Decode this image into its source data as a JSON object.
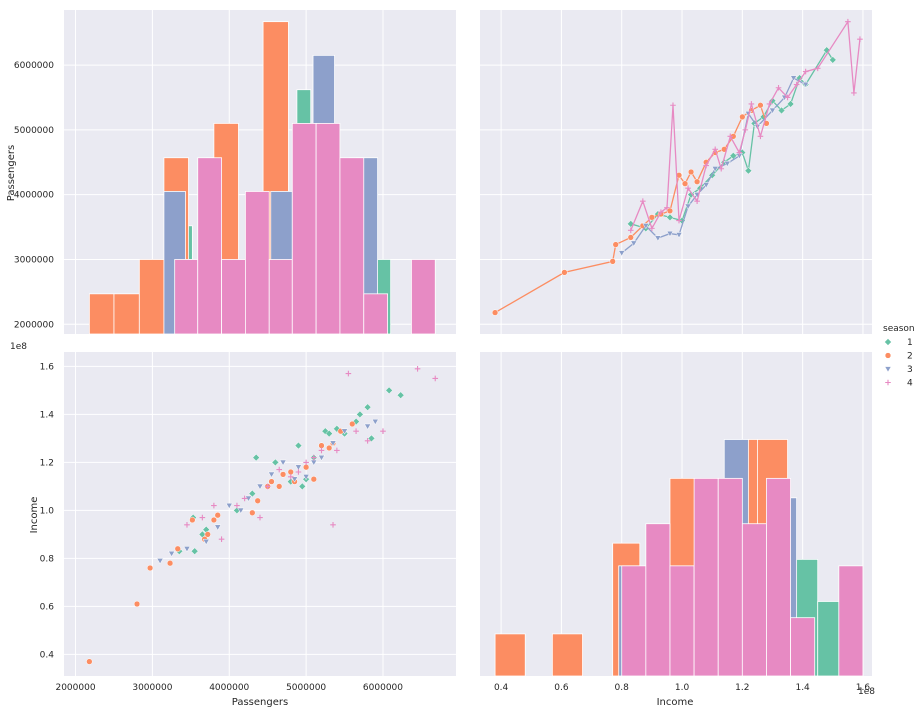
{
  "legend": {
    "title": "season",
    "entries": [
      "1",
      "2",
      "3",
      "4"
    ],
    "colors": [
      "#66c2a5",
      "#fc8d62",
      "#8da0cb",
      "#e78ac3"
    ],
    "markers": [
      "diamond",
      "circle",
      "triangle-down",
      "plus"
    ]
  },
  "axes_text": {
    "passengers": "Passengers",
    "income": "Income",
    "scale_offset": "1e8"
  },
  "chart_data": [
    {
      "panel": "top-left",
      "type": "bar",
      "title": "",
      "xlim": [
        1850000,
        6950000
      ],
      "ylim": [
        1850000,
        6850000
      ],
      "ylabel": "Passengers",
      "xlabel": "",
      "yticks": [
        2000000,
        3000000,
        4000000,
        5000000,
        6000000
      ],
      "yticklabels": [
        "2000000",
        "3000000",
        "4000000",
        "5000000",
        "6000000"
      ],
      "grid": true,
      "series": [
        {
          "name": "1",
          "bins": [
            [
              3340000,
              3520000,
              3520000
            ],
            [
              3520000,
              3700000,
              3000000
            ],
            [
              3700000,
              3880000,
              4570000
            ],
            [
              3880000,
              4060000,
              3000000
            ],
            [
              4880000,
              5060000,
              5620000
            ],
            [
              5560000,
              5740000,
              4570000
            ],
            [
              5740000,
              5920000,
              3520000
            ],
            [
              5920000,
              6100000,
              3000000
            ]
          ]
        },
        {
          "name": "2",
          "bins": [
            [
              2180000,
              2500000,
              2470000
            ],
            [
              2500000,
              2830000,
              2470000
            ],
            [
              2830000,
              3150000,
              3000000
            ],
            [
              3150000,
              3470000,
              4570000
            ],
            [
              3470000,
              3800000,
              3000000
            ],
            [
              3800000,
              4120000,
              5100000
            ],
            [
              4440000,
              4770000,
              6670000
            ]
          ]
        },
        {
          "name": "3",
          "bins": [
            [
              3150000,
              3430000,
              4050000
            ],
            [
              4540000,
              4820000,
              4050000
            ],
            [
              5090000,
              5370000,
              6150000
            ],
            [
              5650000,
              5930000,
              4570000
            ]
          ]
        },
        {
          "name": "4",
          "bins": [
            [
              3290000,
              3590000,
              3000000
            ],
            [
              3590000,
              3900000,
              4570000
            ],
            [
              3900000,
              4210000,
              3000000
            ],
            [
              4210000,
              4520000,
              4050000
            ],
            [
              4520000,
              4820000,
              3000000
            ],
            [
              4820000,
              5130000,
              5100000
            ],
            [
              5130000,
              5440000,
              5100000
            ],
            [
              5440000,
              5750000,
              4570000
            ],
            [
              5750000,
              6060000,
              2470000
            ],
            [
              6370000,
              6680000,
              3000000
            ]
          ]
        }
      ]
    },
    {
      "panel": "top-right",
      "type": "line",
      "title": "",
      "xlim": [
        0.33,
        1.63
      ],
      "ylim": [
        1850000,
        6850000
      ],
      "xlabel": "",
      "ylabel": "",
      "grid": true,
      "series": [
        {
          "name": "1",
          "x": [
            0.83,
            0.88,
            0.92,
            0.96,
            1.0,
            1.03,
            1.06,
            1.1,
            1.14,
            1.17,
            1.2,
            1.22,
            1.24,
            1.27,
            1.3,
            1.33,
            1.36,
            1.39,
            1.41,
            1.48,
            1.5
          ],
          "y": [
            3550000,
            3480000,
            3700000,
            3650000,
            3600000,
            4000000,
            4100000,
            4300000,
            4500000,
            4600000,
            4650000,
            4370000,
            5100000,
            5200000,
            5450000,
            5300000,
            5400000,
            5800000,
            5700000,
            6230000,
            6080000
          ]
        },
        {
          "name": "2",
          "x": [
            0.38,
            0.61,
            0.77,
            0.78,
            0.83,
            0.87,
            0.9,
            0.93,
            0.96,
            0.99,
            1.01,
            1.03,
            1.05,
            1.08,
            1.11,
            1.14,
            1.17,
            1.2,
            1.23,
            1.26,
            1.28
          ],
          "y": [
            2180000,
            2800000,
            2970000,
            3230000,
            3340000,
            3520000,
            3650000,
            3700000,
            3750000,
            4300000,
            4170000,
            4350000,
            4200000,
            4500000,
            4650000,
            4700000,
            4900000,
            5200000,
            5300000,
            5380000,
            5100000
          ]
        },
        {
          "name": "3",
          "x": [
            0.8,
            0.84,
            0.88,
            0.92,
            0.96,
            0.99,
            1.02,
            1.05,
            1.08,
            1.11,
            1.15,
            1.19,
            1.22,
            1.25,
            1.3,
            1.34,
            1.37,
            1.41
          ],
          "y": [
            3100000,
            3250000,
            3520000,
            3330000,
            3400000,
            3380000,
            3820000,
            4000000,
            4150000,
            4400000,
            4480000,
            4600000,
            5250000,
            5050000,
            5300000,
            5500000,
            5800000,
            5700000
          ]
        },
        {
          "name": "4",
          "x": [
            0.83,
            0.87,
            0.9,
            0.93,
            0.95,
            0.97,
            0.99,
            1.02,
            1.05,
            1.08,
            1.11,
            1.13,
            1.16,
            1.19,
            1.21,
            1.23,
            1.26,
            1.29,
            1.32,
            1.35,
            1.38,
            1.41,
            1.45,
            1.55,
            1.57,
            1.59
          ],
          "y": [
            3450000,
            3900000,
            3480000,
            3730000,
            3800000,
            5380000,
            3600000,
            4100000,
            3900000,
            4450000,
            4700000,
            4400000,
            4900000,
            4650000,
            5000000,
            5400000,
            4900000,
            5400000,
            5650000,
            5500000,
            5700000,
            5900000,
            5950000,
            6670000,
            5570000,
            6400000
          ]
        }
      ]
    },
    {
      "panel": "bottom-left",
      "type": "scatter",
      "title": "",
      "xlim": [
        1850000,
        6950000
      ],
      "ylim": [
        0.31,
        1.66
      ],
      "xlabel": "Passengers",
      "ylabel": "Income",
      "xticks": [
        2000000,
        3000000,
        4000000,
        5000000,
        6000000
      ],
      "xticklabels": [
        "2000000",
        "3000000",
        "4000000",
        "5000000",
        "6000000"
      ],
      "yticks": [
        0.4,
        0.6,
        0.8,
        1.0,
        1.2,
        1.4,
        1.6
      ],
      "yticklabels": [
        "0.4",
        "0.6",
        "0.8",
        "1.0",
        "1.2",
        "1.4",
        "1.6"
      ],
      "grid": true,
      "series": [
        {
          "name": "1",
          "points": [
            [
              3350000,
              0.83
            ],
            [
              3530000,
              0.97
            ],
            [
              3550000,
              0.83
            ],
            [
              3650000,
              0.9
            ],
            [
              3700000,
              0.92
            ],
            [
              4100000,
              1.0
            ],
            [
              4300000,
              1.07
            ],
            [
              4350000,
              1.22
            ],
            [
              4600000,
              1.2
            ],
            [
              4700000,
              1.15
            ],
            [
              4800000,
              1.12
            ],
            [
              4900000,
              1.27
            ],
            [
              5000000,
              1.13
            ],
            [
              5100000,
              1.22
            ],
            [
              5200000,
              1.27
            ],
            [
              5250000,
              1.33
            ],
            [
              5300000,
              1.32
            ],
            [
              5400000,
              1.34
            ],
            [
              5500000,
              1.32
            ],
            [
              5650000,
              1.37
            ],
            [
              5700000,
              1.4
            ],
            [
              5800000,
              1.43
            ],
            [
              6080000,
              1.5
            ],
            [
              6230000,
              1.48
            ],
            [
              5850000,
              1.3
            ],
            [
              4950000,
              1.1
            ]
          ]
        },
        {
          "name": "2",
          "points": [
            [
              2180000,
              0.37
            ],
            [
              2800000,
              0.61
            ],
            [
              2970000,
              0.76
            ],
            [
              3230000,
              0.78
            ],
            [
              3330000,
              0.84
            ],
            [
              3520000,
              0.96
            ],
            [
              3680000,
              0.88
            ],
            [
              3720000,
              0.9
            ],
            [
              3800000,
              0.96
            ],
            [
              3850000,
              0.98
            ],
            [
              4300000,
              0.99
            ],
            [
              4370000,
              1.04
            ],
            [
              4500000,
              1.1
            ],
            [
              4550000,
              1.12
            ],
            [
              4650000,
              1.1
            ],
            [
              4800000,
              1.16
            ],
            [
              4850000,
              1.12
            ],
            [
              5000000,
              1.18
            ],
            [
              5100000,
              1.13
            ],
            [
              5200000,
              1.27
            ],
            [
              5300000,
              1.26
            ],
            [
              5350000,
              1.28
            ],
            [
              5450000,
              1.33
            ],
            [
              4700000,
              1.15
            ],
            [
              5600000,
              1.36
            ]
          ]
        },
        {
          "name": "3",
          "points": [
            [
              3100000,
              0.79
            ],
            [
              3250000,
              0.82
            ],
            [
              3450000,
              0.84
            ],
            [
              3700000,
              0.87
            ],
            [
              3850000,
              0.93
            ],
            [
              4000000,
              1.02
            ],
            [
              4150000,
              1.0
            ],
            [
              4250000,
              1.05
            ],
            [
              4400000,
              1.1
            ],
            [
              4550000,
              1.15
            ],
            [
              4700000,
              1.2
            ],
            [
              4900000,
              1.18
            ],
            [
              5100000,
              1.2
            ],
            [
              5200000,
              1.22
            ],
            [
              5350000,
              1.28
            ],
            [
              5500000,
              1.33
            ],
            [
              5800000,
              1.35
            ],
            [
              5900000,
              1.37
            ],
            [
              5000000,
              1.14
            ],
            [
              4850000,
              1.13
            ]
          ]
        },
        {
          "name": "4",
          "points": [
            [
              3450000,
              0.94
            ],
            [
              3650000,
              0.97
            ],
            [
              3800000,
              1.02
            ],
            [
              3900000,
              0.88
            ],
            [
              4100000,
              1.02
            ],
            [
              4200000,
              1.05
            ],
            [
              4400000,
              0.97
            ],
            [
              4500000,
              1.1
            ],
            [
              4650000,
              1.17
            ],
            [
              4800000,
              1.14
            ],
            [
              4900000,
              1.16
            ],
            [
              5000000,
              1.2
            ],
            [
              5100000,
              1.22
            ],
            [
              5200000,
              1.25
            ],
            [
              5350000,
              0.94
            ],
            [
              5400000,
              1.25
            ],
            [
              5550000,
              1.57
            ],
            [
              5650000,
              1.33
            ],
            [
              5800000,
              1.29
            ],
            [
              6000000,
              1.33
            ],
            [
              6450000,
              1.59
            ],
            [
              6680000,
              1.55
            ]
          ]
        }
      ]
    },
    {
      "panel": "bottom-right",
      "type": "bar",
      "title": "",
      "xlim": [
        0.33,
        1.63
      ],
      "ylim": [
        0,
        1
      ],
      "xlabel": "Income",
      "ylabel": "",
      "xticks": [
        0.4,
        0.6,
        0.8,
        1.0,
        1.2,
        1.4,
        1.6
      ],
      "xticklabels": [
        "0.4",
        "0.6",
        "0.8",
        "1.0",
        "1.2",
        "1.4",
        "1.6"
      ],
      "grid": true,
      "series": [
        {
          "name": "1",
          "bins": [
            [
              1.18,
              1.28,
              0.55
            ],
            [
              1.38,
              1.45,
              0.36
            ],
            [
              1.45,
              1.52,
              0.23
            ]
          ]
        },
        {
          "name": "2",
          "bins": [
            [
              0.38,
              0.48,
              0.13
            ],
            [
              0.57,
              0.67,
              0.13
            ],
            [
              0.77,
              0.86,
              0.41
            ],
            [
              0.86,
              0.96,
              0.0
            ],
            [
              0.96,
              1.06,
              0.61
            ],
            [
              1.06,
              1.15,
              0.0
            ],
            [
              1.15,
              1.25,
              0.73
            ],
            [
              1.25,
              1.35,
              0.73
            ]
          ]
        },
        {
          "name": "3",
          "bins": [
            [
              0.79,
              0.87,
              0.34
            ],
            [
              1.14,
              1.22,
              0.73
            ],
            [
              1.3,
              1.38,
              0.55
            ]
          ]
        },
        {
          "name": "4",
          "bins": [
            [
              0.8,
              0.88,
              0.34
            ],
            [
              0.88,
              0.96,
              0.47
            ],
            [
              0.96,
              1.04,
              0.34
            ],
            [
              1.04,
              1.12,
              0.61
            ],
            [
              1.12,
              1.2,
              0.61
            ],
            [
              1.2,
              1.28,
              0.47
            ],
            [
              1.28,
              1.36,
              0.61
            ],
            [
              1.36,
              1.44,
              0.18
            ],
            [
              1.52,
              1.6,
              0.34
            ]
          ]
        }
      ]
    }
  ]
}
